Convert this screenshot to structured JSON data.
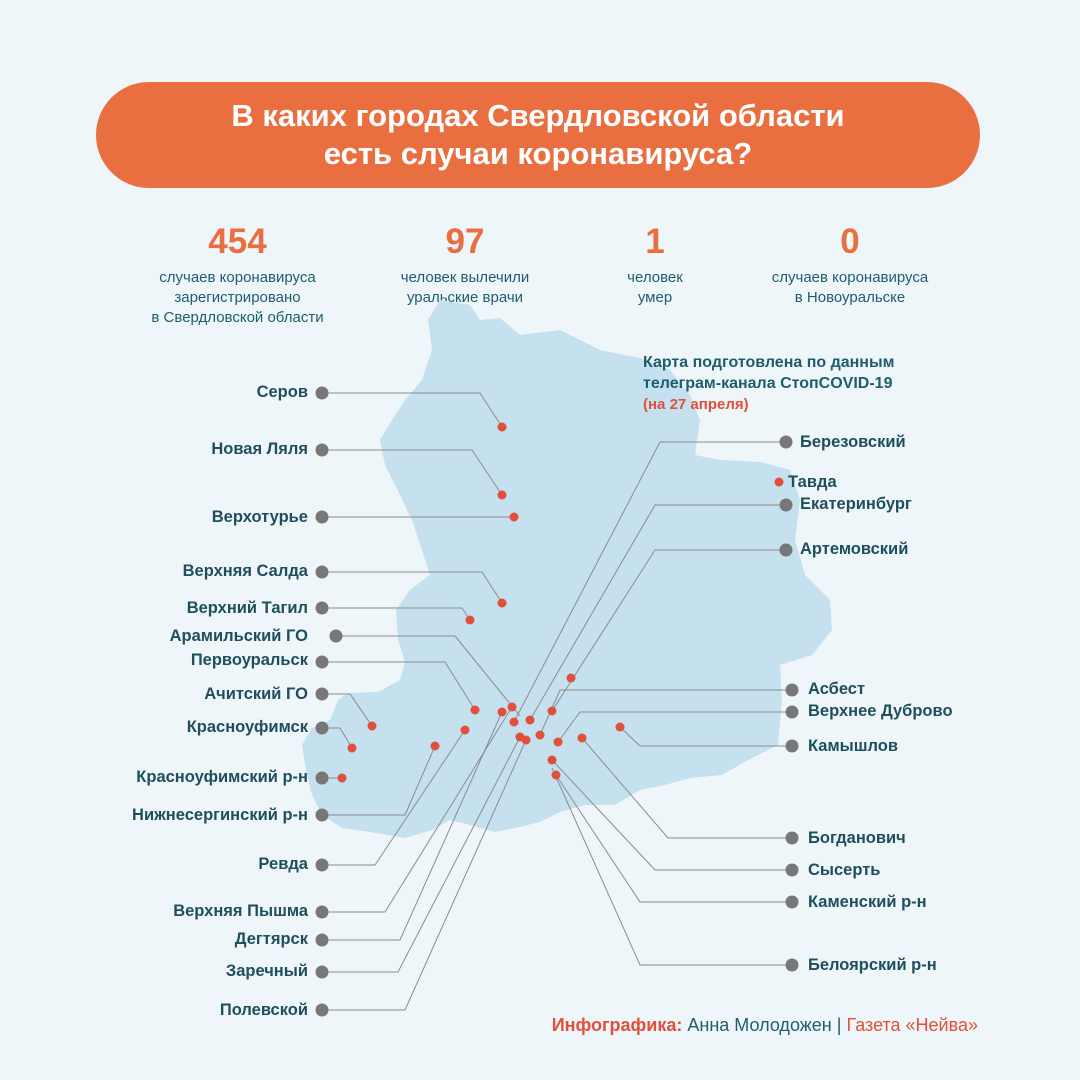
{
  "title": {
    "line1": "В каких городах Свердловской области",
    "line2": "есть случаи коронавируса?"
  },
  "stats": [
    {
      "number": "454",
      "lines": [
        "случаев коронавируса",
        "зарегистрировано",
        "в Свердловской области"
      ]
    },
    {
      "number": "97",
      "lines": [
        "человек вылечили",
        "уральские врачи"
      ]
    },
    {
      "number": "1",
      "lines": [
        "человек",
        "умер"
      ]
    },
    {
      "number": "0",
      "lines": [
        "случаев коронавируса",
        "в Новоуральске"
      ]
    }
  ],
  "source_note": {
    "line1": "Карта подготовлена по данным",
    "line2": "телеграм-канала СтопCOVID-19",
    "date": "(на 27 апреля)"
  },
  "left_cities": [
    "Серов",
    "Новая Ляля",
    "Верхотурье",
    "Верхняя Салда",
    "Верхний Тагил",
    "Арамильский ГО",
    "Первоуральск",
    "Ачитский ГО",
    "Красноуфимск",
    "Красноуфимский р-н",
    "Нижнесергинский р-н",
    "Ревда",
    "Верхняя Пышма",
    "Дегтярск",
    "Заречный",
    "Полевской"
  ],
  "right_cities": [
    "Березовский",
    "Тавда",
    "Екатеринбург",
    "Артемовский",
    "Асбест",
    "Верхнее Дуброво",
    "Камышлов",
    "Богданович",
    "Сысерть",
    "Каменский р-н",
    "Белоярский р-н"
  ],
  "colors": {
    "accent_orange": "#e96e40",
    "dot_red": "#e0503a",
    "text_teal": "#1f5d6d",
    "map_fill": "#c5e0ef",
    "marker_gray": "#777777"
  },
  "credit": {
    "label": "Инфографика:",
    "author": "Анна Молодожен",
    "separator": "|",
    "publication": "Газета «Нейва»"
  }
}
